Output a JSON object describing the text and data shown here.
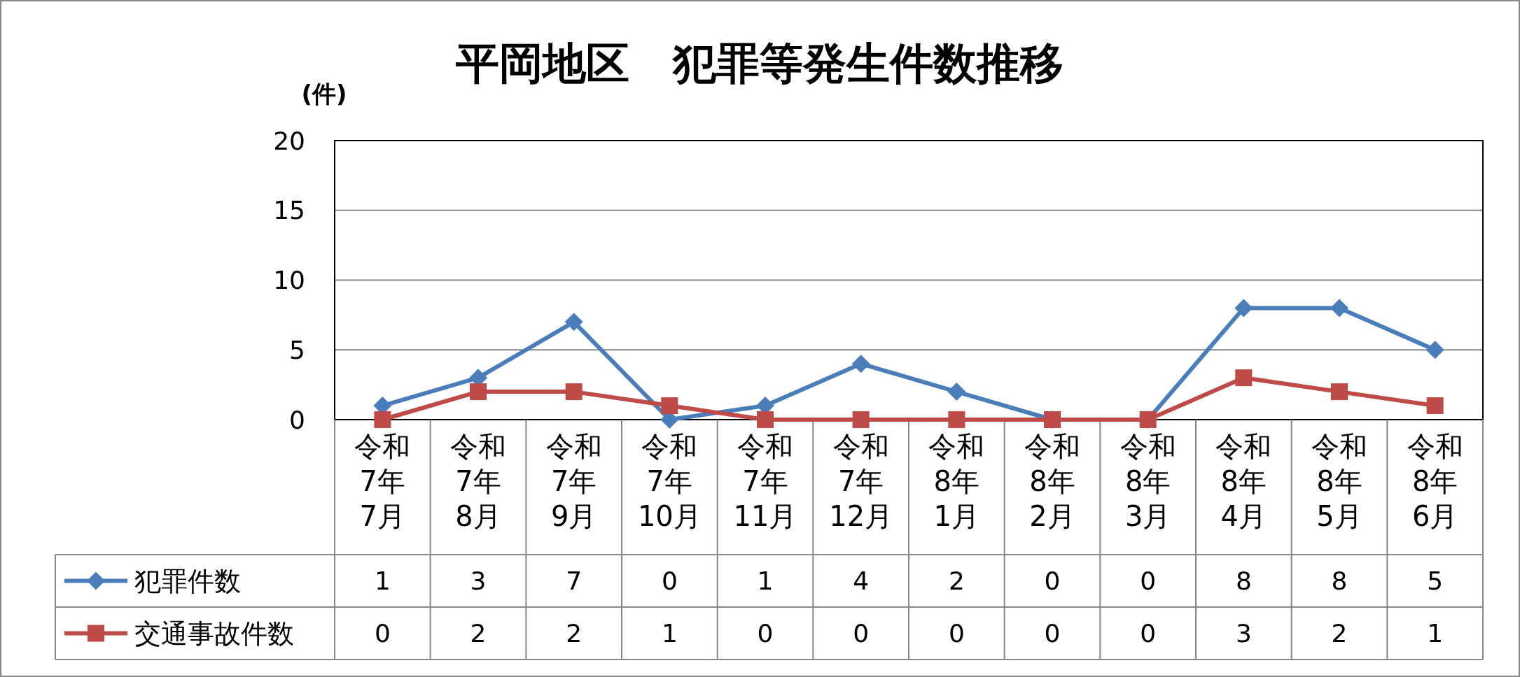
{
  "chart_data": {
    "type": "line",
    "title": "平岡地区　犯罪等発生件数推移",
    "ylabel": "(件)",
    "categories": [
      "令和7年7月",
      "令和7年8月",
      "令和7年9月",
      "令和7年10月",
      "令和7年11月",
      "令和7年12月",
      "令和8年1月",
      "令和8年2月",
      "令和8年3月",
      "令和8年4月",
      "令和8年5月",
      "令和8年6月"
    ],
    "series": [
      {
        "name": "犯罪件数",
        "color": "#4a7ebb",
        "marker": "diamond",
        "values": [
          1,
          3,
          7,
          0,
          1,
          4,
          2,
          0,
          0,
          8,
          8,
          5
        ]
      },
      {
        "name": "交通事故件数",
        "color": "#be4b48",
        "marker": "square",
        "values": [
          0,
          2,
          2,
          1,
          0,
          0,
          0,
          0,
          0,
          3,
          2,
          1
        ]
      }
    ],
    "ylim": [
      0,
      20
    ],
    "yticks": [
      0,
      5,
      10,
      15,
      20
    ],
    "grid": "y",
    "legend": "bottom",
    "data_labels": true
  }
}
